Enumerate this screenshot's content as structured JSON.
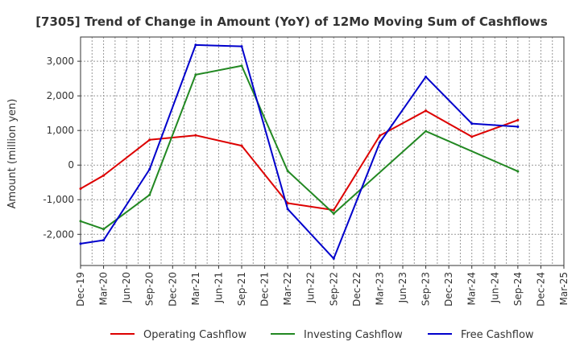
{
  "chart_data": {
    "type": "line",
    "title": "[7305]  Trend of Change in Amount (YoY) of 12Mo Moving Sum of Cashflows",
    "xlabel": "",
    "ylabel": "Amount (million yen)",
    "ylim": [
      -2900,
      3700
    ],
    "yticks": [
      3000,
      2000,
      1000,
      0,
      -1000,
      -2000
    ],
    "ytick_labels": [
      "3,000",
      "2,000",
      "1,000",
      "0",
      "-1,000",
      "-2,000"
    ],
    "categories": [
      "Dec-19",
      "Mar-20",
      "Jun-20",
      "Sep-20",
      "Dec-20",
      "Mar-21",
      "Jun-21",
      "Sep-21",
      "Dec-21",
      "Mar-22",
      "Jun-22",
      "Sep-22",
      "Dec-22",
      "Mar-23",
      "Jun-23",
      "Sep-23",
      "Dec-23",
      "Mar-24",
      "Jun-24",
      "Sep-24",
      "Dec-24",
      "Mar-25"
    ],
    "grid": true,
    "legend_position": "bottom",
    "series": [
      {
        "name": "Operating Cashflow",
        "color": "#dd0000",
        "points": [
          {
            "x": "Dec-19",
            "y": -680
          },
          {
            "x": "Mar-20",
            "y": -300
          },
          {
            "x": "Sep-20",
            "y": 730
          },
          {
            "x": "Mar-21",
            "y": 860
          },
          {
            "x": "Sep-21",
            "y": 560
          },
          {
            "x": "Mar-22",
            "y": -1100
          },
          {
            "x": "Sep-22",
            "y": -1300
          },
          {
            "x": "Mar-23",
            "y": 850
          },
          {
            "x": "Sep-23",
            "y": 1570
          },
          {
            "x": "Mar-24",
            "y": 820
          },
          {
            "x": "Sep-24",
            "y": 1300
          }
        ]
      },
      {
        "name": "Investing Cashflow",
        "color": "#228822",
        "points": [
          {
            "x": "Dec-19",
            "y": -1620
          },
          {
            "x": "Mar-20",
            "y": -1850
          },
          {
            "x": "Sep-20",
            "y": -860
          },
          {
            "x": "Mar-21",
            "y": 2610
          },
          {
            "x": "Sep-21",
            "y": 2870
          },
          {
            "x": "Mar-22",
            "y": -170
          },
          {
            "x": "Sep-22",
            "y": -1400
          },
          {
            "x": "Sep-23",
            "y": 980
          },
          {
            "x": "Sep-24",
            "y": -180
          }
        ]
      },
      {
        "name": "Free Cashflow",
        "color": "#0000cc",
        "points": [
          {
            "x": "Dec-19",
            "y": -2270
          },
          {
            "x": "Mar-20",
            "y": -2170
          },
          {
            "x": "Sep-20",
            "y": -120
          },
          {
            "x": "Mar-21",
            "y": 3470
          },
          {
            "x": "Sep-21",
            "y": 3430
          },
          {
            "x": "Mar-22",
            "y": -1270
          },
          {
            "x": "Sep-22",
            "y": -2700
          },
          {
            "x": "Mar-23",
            "y": 650
          },
          {
            "x": "Sep-23",
            "y": 2550
          },
          {
            "x": "Mar-24",
            "y": 1200
          },
          {
            "x": "Sep-24",
            "y": 1110
          }
        ]
      }
    ]
  }
}
